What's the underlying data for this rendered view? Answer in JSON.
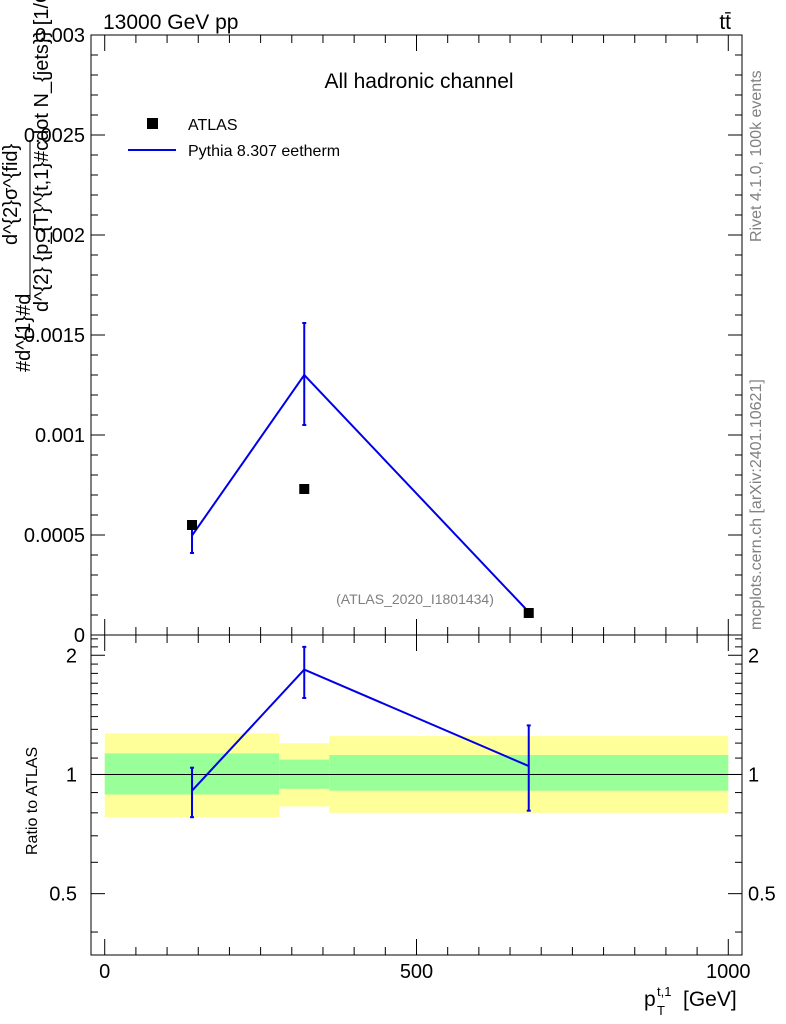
{
  "header": {
    "energy_label": "13000 GeV pp",
    "process_label": "tt̄",
    "side_label_top": "Rivet 4.1.0,  100k events",
    "side_label_bottom": "mcplots.cern.ch [arXiv:2401.10621]"
  },
  "colors": {
    "mc_line": "#0000e6",
    "band_inner": "#99ff99",
    "band_outer": "#ffff99",
    "data_marker": "#000000"
  },
  "chart_data": [
    {
      "type": "scatter",
      "panel": "main",
      "title": "All hadronic channel",
      "analysis_tag": "(ATLAS_2020_I1801434)",
      "ylabel": "#d^{2}σ^{fid} / d^{2}{p_{T}^{t,1}#cdot N_{jets}} [1/GeV]",
      "ylabel_lines": [
        "#d^{1}#d",
        "d^{2}σ^{fid}",
        "d^{2} {p_{T}^{t,1}#cdot N_{jets}} [1/GeV]"
      ],
      "ylim": [
        0,
        0.003
      ],
      "yticks": [
        0,
        0.0005,
        0.001,
        0.0015,
        0.002,
        0.0025,
        0.003
      ],
      "ytick_labels": [
        "0",
        "0.0005",
        "0.001",
        "0.0015",
        "0.002",
        "0.0025",
        "0.003"
      ],
      "xlim": [
        0,
        1000
      ],
      "legend": [
        {
          "label": "ATLAS",
          "kind": "marker"
        },
        {
          "label": "Pythia 8.307 eetherm",
          "kind": "line"
        }
      ],
      "legend_position": "top-left",
      "series": [
        {
          "name": "ATLAS",
          "x": [
            140,
            320,
            680
          ],
          "y": [
            0.00055,
            0.00073,
            0.00011
          ]
        },
        {
          "name": "Pythia 8.307 eetherm",
          "x": [
            140,
            320,
            680
          ],
          "y": [
            0.000497,
            0.0013,
            0.000115
          ],
          "yerr_low": [
            8.7e-05,
            0.00025,
            1e-05
          ],
          "yerr_high": [
            5.7e-05,
            0.00026,
            1e-05
          ]
        }
      ]
    },
    {
      "type": "line",
      "panel": "ratio",
      "ylabel": "Ratio to ATLAS",
      "xlabel": "p_T^{t,1} [GeV]",
      "xlabel_main": "p",
      "xlabel_sub": "T",
      "xlabel_sup": "t,1",
      "xlabel_unit": "[GeV]",
      "ylim": [
        0.35,
        2.25
      ],
      "yticks": [
        0.5,
        1,
        2
      ],
      "ytick_labels": [
        "0.5",
        "1",
        "2"
      ],
      "xlim": [
        -22,
        1022
      ],
      "xticks": [
        0,
        500,
        1000
      ],
      "xtick_labels": [
        "0",
        "500",
        "1000"
      ],
      "bins": [
        {
          "lo": 0,
          "hi": 280,
          "inner": [
            0.89,
            1.13
          ],
          "outer": [
            0.78,
            1.27
          ]
        },
        {
          "lo": 280,
          "hi": 360,
          "inner": [
            0.92,
            1.09
          ],
          "outer": [
            0.83,
            1.2
          ]
        },
        {
          "lo": 360,
          "hi": 1000,
          "inner": [
            0.91,
            1.12
          ],
          "outer": [
            0.8,
            1.25
          ]
        }
      ],
      "series": [
        {
          "name": "Pythia 8.307 eetherm",
          "x": [
            140,
            320,
            680
          ],
          "y": [
            0.91,
            1.84,
            1.05
          ],
          "yerr_low": [
            0.13,
            0.28,
            0.24
          ],
          "yerr_high": [
            0.13,
            0.26,
            0.28
          ]
        }
      ]
    }
  ]
}
